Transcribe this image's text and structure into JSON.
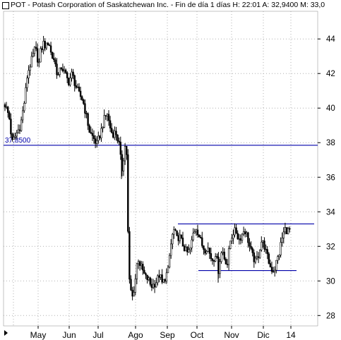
{
  "header": {
    "symbol": "POT",
    "text": "POT - Potash Corporation of Saskatchewan Inc. - Fin de día 1 días  H: 22:01  A: 32,9400  M: 33,0"
  },
  "colors": {
    "background": "#ffffff",
    "candles": "#000000",
    "support_resistance": "#0000aa",
    "grid": "#b0b0b0"
  },
  "chart_data": {
    "type": "candlestick",
    "title": "POT - Potash Corporation of Saskatchewan Inc.",
    "grid": true,
    "y_axis": {
      "position": "right",
      "range": [
        27.4,
        45.6
      ],
      "ticks": [
        28,
        30,
        32,
        34,
        36,
        38,
        40,
        42,
        44
      ]
    },
    "x_axis": {
      "labels": [
        "May",
        "Jun",
        "Jul",
        "Ago",
        "Sep",
        "Oct",
        "Nov",
        "Dic",
        "14"
      ]
    },
    "price_path": [
      [
        0,
        40.2
      ],
      [
        6,
        39.5
      ],
      [
        10,
        38.0
      ],
      [
        15,
        38.4
      ],
      [
        22,
        39.0
      ],
      [
        28,
        40.5
      ],
      [
        32,
        42.0
      ],
      [
        38,
        42.8
      ],
      [
        43,
        43.5
      ],
      [
        48,
        42.5
      ],
      [
        50,
        43.2
      ],
      [
        55,
        43.8
      ],
      [
        58,
        43.5
      ],
      [
        62,
        43.9
      ],
      [
        66,
        43.0
      ],
      [
        70,
        42.8
      ],
      [
        75,
        41.8
      ],
      [
        80,
        42.4
      ],
      [
        85,
        42.0
      ],
      [
        90,
        41.5
      ],
      [
        95,
        42.0
      ],
      [
        100,
        41.3
      ],
      [
        105,
        40.8
      ],
      [
        110,
        40.5
      ],
      [
        115,
        39.6
      ],
      [
        120,
        38.6
      ],
      [
        125,
        38.3
      ],
      [
        130,
        37.9
      ],
      [
        135,
        38.5
      ],
      [
        140,
        39.3
      ],
      [
        145,
        39.7
      ],
      [
        148,
        39.0
      ],
      [
        152,
        38.5
      ],
      [
        157,
        38.6
      ],
      [
        161,
        38.0
      ],
      [
        163,
        37.7
      ],
      [
        165,
        36.2
      ],
      [
        167,
        36.8
      ],
      [
        170,
        37.8
      ],
      [
        173,
        37.2
      ],
      [
        175,
        30.4
      ],
      [
        178,
        29.5
      ],
      [
        181,
        29.0
      ],
      [
        185,
        30.2
      ],
      [
        188,
        31.4
      ],
      [
        191,
        31.0
      ],
      [
        195,
        30.6
      ],
      [
        199,
        30.2
      ],
      [
        203,
        30.1
      ],
      [
        207,
        29.7
      ],
      [
        211,
        29.8
      ],
      [
        215,
        30.0
      ],
      [
        219,
        30.4
      ],
      [
        223,
        29.8
      ],
      [
        227,
        30.2
      ],
      [
        231,
        30.6
      ],
      [
        234,
        31.8
      ],
      [
        237,
        32.6
      ],
      [
        240,
        33.0
      ],
      [
        243,
        32.4
      ],
      [
        247,
        32.6
      ],
      [
        251,
        32.2
      ],
      [
        255,
        31.8
      ],
      [
        259,
        31.6
      ],
      [
        263,
        31.9
      ],
      [
        267,
        32.8
      ],
      [
        271,
        33.1
      ],
      [
        275,
        32.6
      ],
      [
        279,
        32.1
      ],
      [
        283,
        31.8
      ],
      [
        287,
        32.0
      ],
      [
        291,
        31.4
      ],
      [
        295,
        31.2
      ],
      [
        299,
        31.7
      ],
      [
        302,
        30.5
      ],
      [
        305,
        31.4
      ],
      [
        308,
        31.8
      ],
      [
        311,
        31.3
      ],
      [
        315,
        31.0
      ],
      [
        319,
        32.3
      ],
      [
        323,
        32.8
      ],
      [
        327,
        32.9
      ],
      [
        331,
        32.4
      ],
      [
        335,
        32.6
      ],
      [
        339,
        33.0
      ],
      [
        343,
        32.6
      ],
      [
        347,
        31.9
      ],
      [
        351,
        31.4
      ],
      [
        355,
        31.1
      ],
      [
        359,
        31.5
      ],
      [
        363,
        32.3
      ],
      [
        367,
        32.1
      ],
      [
        370,
        31.6
      ],
      [
        373,
        31.2
      ],
      [
        376,
        30.8
      ],
      [
        379,
        30.6
      ],
      [
        382,
        30.7
      ],
      [
        385,
        31.2
      ],
      [
        388,
        31.5
      ],
      [
        391,
        32.2
      ],
      [
        394,
        32.7
      ],
      [
        397,
        33.0
      ],
      [
        400,
        32.9
      ],
      [
        404,
        32.94
      ]
    ],
    "annotations": [
      {
        "label": "37,8500",
        "type": "horizontal_line",
        "value": 37.85,
        "span": "full"
      },
      {
        "label": "",
        "type": "resistance_line",
        "value": 33.3,
        "span": "Sep-14"
      },
      {
        "label": "",
        "type": "support_line",
        "value": 30.6,
        "span": "Oct-Dic"
      }
    ]
  }
}
